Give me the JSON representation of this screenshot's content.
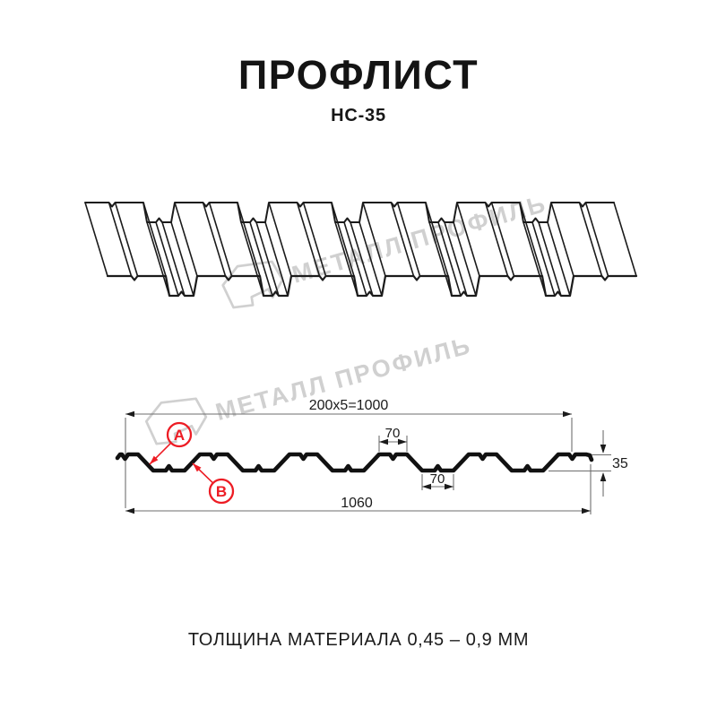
{
  "page": {
    "title": "ПРОФЛИСТ",
    "subtitle": "НС-35",
    "footer_note": "ТОЛЩИНА МАТЕРИАЛА 0,45 – 0,9 ММ"
  },
  "watermarks": {
    "brand_text": "МЕТАЛЛ ПРОФИЛЬ",
    "color": "#c3c3c3"
  },
  "section": {
    "dim_working_width": "200x5=1000",
    "dim_crest_width": "70",
    "dim_valley_width": "70",
    "dim_height": "35",
    "dim_full_width": "1060",
    "callout_a": "А",
    "callout_b": "В",
    "accent_color": "#ed1c24",
    "line_color": "#1b1b1b",
    "dim_line_color": "#6e6e6e"
  }
}
